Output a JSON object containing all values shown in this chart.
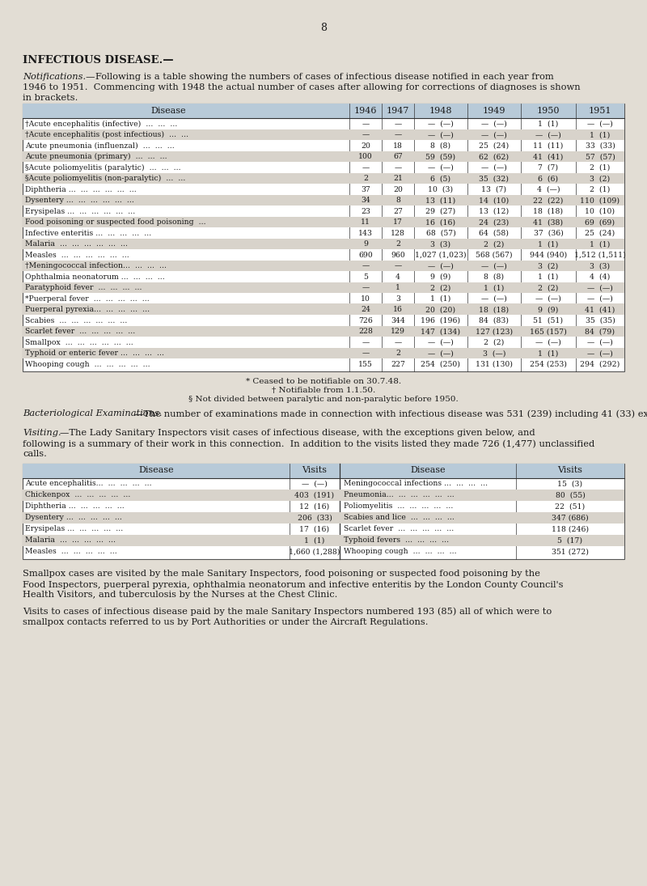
{
  "page_number": "8",
  "bg_color": "#e2ddd4",
  "heading": "INFECTIOUS DISEASE.—",
  "table1_headers": [
    "Disease",
    "1946",
    "1947",
    "1948",
    "1949",
    "1950",
    "1951"
  ],
  "table1_rows": [
    [
      "†Acute encephalitis (infective)  ...  ...  ...",
      "—",
      "—",
      "—  (—)",
      "—  (—)",
      "1  (1)",
      "—  (—)"
    ],
    [
      "†Acute encephalitis (post infectious)  ...  ...",
      "—",
      "—",
      "—  (—)",
      "—  (—)",
      "—  (—)",
      "1  (1)"
    ],
    [
      "Acute pneumonia (influenzal)  ...  ...  ...",
      "20",
      "18",
      "8  (8)",
      "25  (24)",
      "11  (11)",
      "33  (33)"
    ],
    [
      "Acute pneumonia (primary)  ...  ...  ...",
      "100",
      "67",
      "59  (59)",
      "62  (62)",
      "41  (41)",
      "57  (57)"
    ],
    [
      "§Acute poliomyelitis (paralytic)  ...  ...  ...",
      "—",
      "—",
      "—  (—)",
      "—  (—)",
      "7  (7)",
      "2  (1)"
    ],
    [
      "§Acute poliomyelitis (non-paralytic)  ...  ...",
      "2",
      "21",
      "6  (5)",
      "35  (32)",
      "6  (6)",
      "3  (2)"
    ],
    [
      "Diphtheria ...  ...  ...  ...  ...  ...",
      "37",
      "20",
      "10  (3)",
      "13  (7)",
      "4  (—)",
      "2  (1)"
    ],
    [
      "Dysentery ...  ...  ...  ...  ...  ...",
      "34",
      "8",
      "13  (11)",
      "14  (10)",
      "22  (22)",
      "110  (109)"
    ],
    [
      "Erysipelas ...  ...  ...  ...  ...  ...",
      "23",
      "27",
      "29  (27)",
      "13  (12)",
      "18  (18)",
      "10  (10)"
    ],
    [
      "Food poisoning or suspected food poisoning  ...",
      "11",
      "17",
      "16  (16)",
      "24  (23)",
      "41  (38)",
      "69  (69)"
    ],
    [
      "Infective enteritis ...  ...  ...  ...  ...",
      "143",
      "128",
      "68  (57)",
      "64  (58)",
      "37  (36)",
      "25  (24)"
    ],
    [
      "Malaria  ...  ...  ...  ...  ...  ...",
      "9",
      "2",
      "3  (3)",
      "2  (2)",
      "1  (1)",
      "1  (1)"
    ],
    [
      "Measles  ...  ...  ...  ...  ...  ...",
      "690",
      "960",
      "1,027 (1,023)",
      "568 (567)",
      "944 (940)",
      "1,512 (1,511)"
    ],
    [
      "†Meningococcal infection...  ...  ...  ...",
      "—",
      "—",
      "—  (—)",
      "—  (—)",
      "3  (2)",
      "3  (3)"
    ],
    [
      "Ophthalmia neonatorum ...  ...  ...  ...",
      "5",
      "4",
      "9  (9)",
      "8  (8)",
      "1  (1)",
      "4  (4)"
    ],
    [
      "Paratyphoid fever  ...  ...  ...  ...",
      "—",
      "1",
      "2  (2)",
      "1  (1)",
      "2  (2)",
      "—  (—)"
    ],
    [
      "*Puerperal fever  ...  ...  ...  ...  ...",
      "10",
      "3",
      "1  (1)",
      "—  (—)",
      "—  (—)",
      "—  (—)"
    ],
    [
      "Puerperal pyrexia...  ...  ...  ...  ...",
      "24",
      "16",
      "20  (20)",
      "18  (18)",
      "9  (9)",
      "41  (41)"
    ],
    [
      "Scabies  ...  ...  ...  ...  ...  ...",
      "726",
      "344",
      "196  (196)",
      "84  (83)",
      "51  (51)",
      "35  (35)"
    ],
    [
      "Scarlet fever  ...  ...  ...  ...  ...",
      "228",
      "129",
      "147  (134)",
      "127 (123)",
      "165 (157)",
      "84  (79)"
    ],
    [
      "Smallpox  ...  ...  ...  ...  ...  ...",
      "—",
      "—",
      "—  (—)",
      "2  (2)",
      "—  (—)",
      "—  (—)"
    ],
    [
      "Typhoid or enteric fever ...  ...  ...  ...",
      "—",
      "2",
      "—  (—)",
      "3  (—)",
      "1  (1)",
      "—  (—)"
    ],
    [
      "Whooping cough  ...  ...  ...  ...  ...",
      "155",
      "227",
      "254  (250)",
      "131 (130)",
      "254 (253)",
      "294  (292)"
    ]
  ],
  "footnotes": [
    "* Ceased to be notifiable on 30.7.48.",
    "† Notifiable from 1.1.50.",
    "§ Not divided between paralytic and non-paralytic before 1950."
  ],
  "table2_col1_disease": [
    "Acute encephalitis...  ...  ...  ...  ...",
    "Chickenpox  ...  ...  ...  ...  ...",
    "Diphtheria ...  ...  ...  ...  ...",
    "Dysentery ...  ...  ...  ...  ...",
    "Erysipelas ...  ...  ...  ...  ...",
    "Malaria  ...  ...  ...  ...  ...",
    "Measles  ...  ...  ...  ...  ..."
  ],
  "table2_col1_visits": [
    "—  (—)",
    "403  (191)",
    "12  (16)",
    "206  (33)",
    "17  (16)",
    "1  (1)",
    "1,660 (1,288)"
  ],
  "table2_col2_disease": [
    "Meningococcal infections ...  ...  ...  ...",
    "Pneumonia...  ...  ...  ...  ...  ...",
    "Poliomyelitis  ...  ...  ...  ...  ...",
    "Scabies and lice  ...  ...  ...  ...",
    "Scarlet fever  ...  ...  ...  ...  ...",
    "Typhoid fevers  ...  ...  ...  ...",
    "Whooping cough  ...  ...  ...  ..."
  ],
  "table2_col2_visits": [
    "15  (3)",
    "80  (55)",
    "22  (51)",
    "347 (686)",
    "118 (246)",
    "5  (17)",
    "351 (272)"
  ]
}
